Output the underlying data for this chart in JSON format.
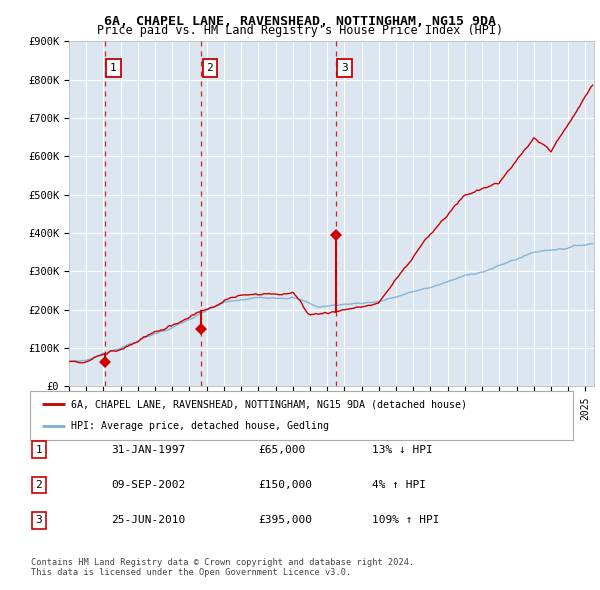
{
  "title1": "6A, CHAPEL LANE, RAVENSHEAD, NOTTINGHAM, NG15 9DA",
  "title2": "Price paid vs. HM Land Registry's House Price Index (HPI)",
  "background_color": "#dce6f1",
  "plot_bg_color": "#dce6f1",
  "red_line_color": "#cc0000",
  "blue_line_color": "#7bafd4",
  "sale_points": [
    {
      "date_num": 1997.08,
      "price": 65000,
      "label": "1"
    },
    {
      "date_num": 2002.69,
      "price": 150000,
      "label": "2"
    },
    {
      "date_num": 2010.49,
      "price": 395000,
      "label": "3"
    }
  ],
  "ylim": [
    0,
    900000
  ],
  "xlim": [
    1995.0,
    2025.5
  ],
  "yticks": [
    0,
    100000,
    200000,
    300000,
    400000,
    500000,
    600000,
    700000,
    800000,
    900000
  ],
  "ytick_labels": [
    "£0",
    "£100K",
    "£200K",
    "£300K",
    "£400K",
    "£500K",
    "£600K",
    "£700K",
    "£800K",
    "£900K"
  ],
  "legend_red": "6A, CHAPEL LANE, RAVENSHEAD, NOTTINGHAM, NG15 9DA (detached house)",
  "legend_blue": "HPI: Average price, detached house, Gedling",
  "table_rows": [
    {
      "num": "1",
      "date": "31-JAN-1997",
      "price": "£65,000",
      "hpi": "13% ↓ HPI"
    },
    {
      "num": "2",
      "date": "09-SEP-2002",
      "price": "£150,000",
      "hpi": "4% ↑ HPI"
    },
    {
      "num": "3",
      "date": "25-JUN-2010",
      "price": "£395,000",
      "hpi": "109% ↑ HPI"
    }
  ],
  "footnote": "Contains HM Land Registry data © Crown copyright and database right 2024.\nThis data is licensed under the Open Government Licence v3.0.",
  "num_box_color": "#ffffff",
  "num_box_edge": "#cc0000",
  "grid_color": "#ffffff",
  "spine_color": "#bbbbbb"
}
